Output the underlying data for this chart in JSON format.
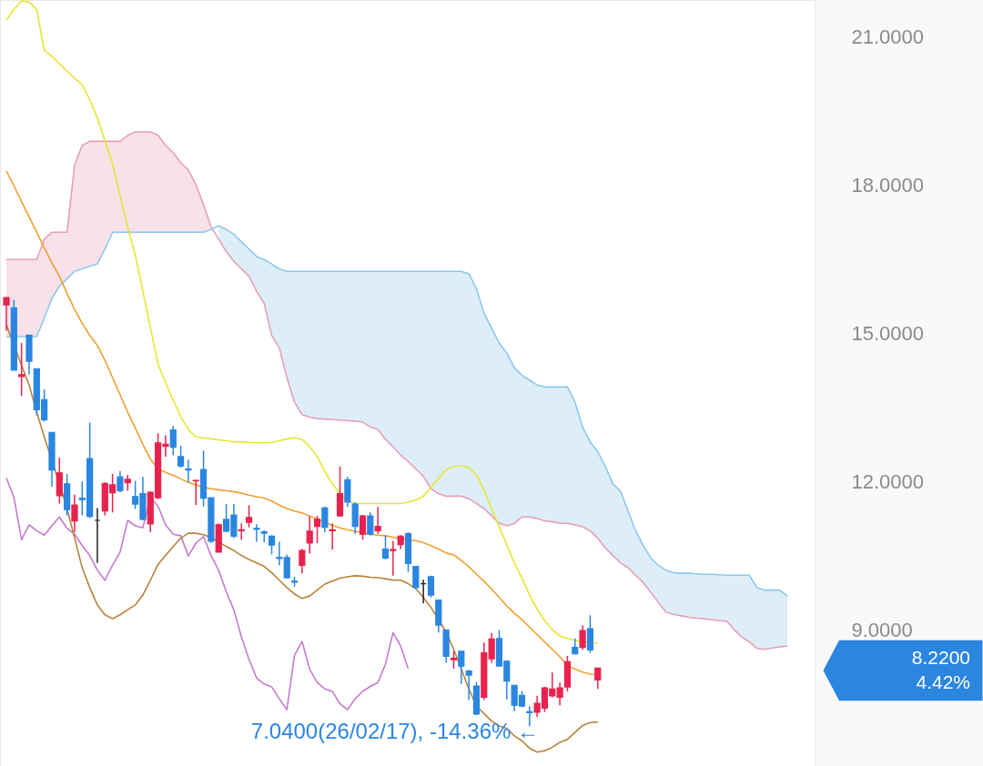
{
  "chart_data": {
    "type": "candlestick",
    "categories": [
      null,
      null,
      null,
      null,
      null,
      null,
      null,
      null,
      null,
      null,
      null,
      null,
      null,
      null,
      null,
      null,
      null,
      null,
      null,
      null,
      null,
      null,
      null,
      null,
      null,
      null,
      null,
      null,
      null,
      null,
      null,
      null,
      null,
      null,
      null,
      null,
      null,
      null,
      null,
      null,
      null,
      null,
      null,
      null,
      null,
      null,
      null,
      null,
      null,
      null,
      null,
      null,
      null,
      null,
      null,
      null,
      null,
      null,
      null,
      null,
      null,
      null,
      null,
      null,
      null,
      null,
      null,
      null,
      null,
      null,
      null,
      null,
      null,
      null,
      null,
      null,
      null,
      null,
      null,
      null,
      null,
      null,
      null,
      null,
      null,
      null,
      null,
      null,
      null,
      null,
      null,
      null,
      null,
      null,
      null,
      null,
      null,
      null,
      null,
      null,
      null,
      null,
      null,
      null
    ],
    "ohlc": [
      [
        15.57,
        15.72,
        15.05,
        15.72
      ],
      [
        15.51,
        15.67,
        14.25,
        14.25
      ],
      [
        14.12,
        14.8,
        13.73,
        14.16
      ],
      [
        14.96,
        14.96,
        14.16,
        14.43
      ],
      [
        14.28,
        14.28,
        13.33,
        13.45
      ],
      [
        13.65,
        13.86,
        13.21,
        13.24
      ],
      [
        12.99,
        12.99,
        11.89,
        12.23
      ],
      [
        11.71,
        12.48,
        11.55,
        12.17
      ],
      [
        11.95,
        12.15,
        11.31,
        11.43
      ],
      [
        11.2,
        11.73,
        10.97,
        11.52
      ],
      [
        11.66,
        12.0,
        11.31,
        11.63
      ],
      [
        12.46,
        13.19,
        11.26,
        11.29
      ],
      [
        11.21,
        11.46,
        10.35,
        11.21
      ],
      [
        11.4,
        11.98,
        11.31,
        11.96
      ],
      [
        11.77,
        12.15,
        11.37,
        11.93
      ],
      [
        12.09,
        12.21,
        11.78,
        11.81
      ],
      [
        11.97,
        12.13,
        11.81,
        12.04
      ],
      [
        11.69,
        12.01,
        11.44,
        11.54
      ],
      [
        11.75,
        12.09,
        11.21,
        11.23
      ],
      [
        11.14,
        11.8,
        10.97,
        11.78
      ],
      [
        11.67,
        12.97,
        11.64,
        12.78
      ],
      [
        12.71,
        12.93,
        12.5,
        12.75
      ],
      [
        13.04,
        13.12,
        12.53,
        12.69
      ],
      [
        12.5,
        12.72,
        12.28,
        12.31
      ],
      [
        12.25,
        12.44,
        11.98,
        12.23
      ],
      [
        12.01,
        12.02,
        11.52,
        12.02
      ],
      [
        12.24,
        12.62,
        11.49,
        11.66
      ],
      [
        11.67,
        11.67,
        10.75,
        10.79
      ],
      [
        10.57,
        11.15,
        10.57,
        11.12
      ],
      [
        11.23,
        11.54,
        10.97,
        10.99
      ],
      [
        11.32,
        11.54,
        10.85,
        10.89
      ],
      [
        11.0,
        11.15,
        10.82,
        11.02
      ],
      [
        11.17,
        11.52,
        11.07,
        11.27
      ],
      [
        11.05,
        11.13,
        10.78,
        11.03
      ],
      [
        10.98,
        11.01,
        10.77,
        10.95
      ],
      [
        10.89,
        10.91,
        10.52,
        10.71
      ],
      [
        10.46,
        10.78,
        10.3,
        10.44
      ],
      [
        10.46,
        10.52,
        10.03,
        10.05
      ],
      [
        9.98,
        10.07,
        9.87,
        9.96
      ],
      [
        10.3,
        10.63,
        10.14,
        10.6
      ],
      [
        10.75,
        11.3,
        10.54,
        10.99
      ],
      [
        11.09,
        11.3,
        10.75,
        11.23
      ],
      [
        11.46,
        11.49,
        10.97,
        11.07
      ],
      [
        11.0,
        11.15,
        10.62,
        11.02
      ],
      [
        11.3,
        12.3,
        11.3,
        11.75
      ],
      [
        12.03,
        12.09,
        11.48,
        11.58
      ],
      [
        11.54,
        11.58,
        10.94,
        11.09
      ],
      [
        10.93,
        11.32,
        10.82,
        11.3
      ],
      [
        11.3,
        11.37,
        10.9,
        10.93
      ],
      [
        11.0,
        11.48,
        10.94,
        11.09
      ],
      [
        10.63,
        10.91,
        10.42,
        10.45
      ],
      [
        10.6,
        10.79,
        10.09,
        10.62
      ],
      [
        10.72,
        10.91,
        10.63,
        10.89
      ],
      [
        10.94,
        10.97,
        10.17,
        10.34
      ],
      [
        10.28,
        10.28,
        9.83,
        9.85
      ],
      [
        9.93,
        10.01,
        9.53,
        9.93
      ],
      [
        10.07,
        10.09,
        9.65,
        9.7
      ],
      [
        9.6,
        9.6,
        8.94,
        9.09
      ],
      [
        8.99,
        9.0,
        8.33,
        8.46
      ],
      [
        8.39,
        8.56,
        8.21,
        8.42
      ],
      [
        8.56,
        8.56,
        7.9,
        8.26
      ],
      [
        8.16,
        8.18,
        7.58,
        8.08
      ],
      [
        7.86,
        7.94,
        7.27,
        7.29
      ],
      [
        7.63,
        8.74,
        7.58,
        8.53
      ],
      [
        8.41,
        8.93,
        8.33,
        8.81
      ],
      [
        8.82,
        8.99,
        8.26,
        8.26
      ],
      [
        8.36,
        8.38,
        7.59,
        7.96
      ],
      [
        7.87,
        7.87,
        7.35,
        7.47
      ],
      [
        7.67,
        7.76,
        7.43,
        7.45
      ],
      [
        7.34,
        7.45,
        7.04,
        7.32
      ],
      [
        7.33,
        7.66,
        7.23,
        7.51
      ],
      [
        7.41,
        7.84,
        7.33,
        7.82
      ],
      [
        7.66,
        8.13,
        7.63,
        7.8
      ],
      [
        7.63,
        7.93,
        7.47,
        7.82
      ],
      [
        7.84,
        8.47,
        7.75,
        8.35
      ],
      [
        8.64,
        8.82,
        8.5,
        8.51
      ],
      [
        8.64,
        9.09,
        8.59,
        8.98
      ],
      [
        9.02,
        9.29,
        8.53,
        8.59
      ],
      [
        7.98,
        8.22,
        7.8,
        8.22
      ],
      null,
      null,
      null,
      null,
      null,
      null,
      null,
      null,
      null,
      null,
      null,
      null,
      null,
      null,
      null,
      null,
      null,
      null,
      null,
      null,
      null,
      null,
      null,
      null,
      null
    ],
    "colors": [
      "#e8224e",
      "#2b86e0",
      "#e8224e",
      "#2b86e0",
      "#2b86e0",
      "#2b86e0",
      "#2b86e0",
      "#e8224e",
      "#2b86e0",
      "#e8224e",
      "#2b86e0",
      "#2b86e0",
      "#222222",
      "#e8224e",
      "#e8224e",
      "#2b86e0",
      "#e8224e",
      "#2b86e0",
      "#2b86e0",
      "#e8224e",
      "#e8224e",
      "#e8224e",
      "#2b86e0",
      "#2b86e0",
      "#2b86e0",
      "#e8224e",
      "#2b86e0",
      "#2b86e0",
      "#e8224e",
      "#2b86e0",
      "#2b86e0",
      "#e8224e",
      "#e8224e",
      "#2b86e0",
      "#2b86e0",
      "#2b86e0",
      "#2b86e0",
      "#2b86e0",
      "#2b86e0",
      "#e8224e",
      "#e8224e",
      "#e8224e",
      "#2b86e0",
      "#e8224e",
      "#e8224e",
      "#2b86e0",
      "#2b86e0",
      "#e8224e",
      "#2b86e0",
      "#e8224e",
      "#2b86e0",
      "#e8224e",
      "#e8224e",
      "#2b86e0",
      "#2b86e0",
      "#222222",
      "#2b86e0",
      "#2b86e0",
      "#2b86e0",
      "#e8224e",
      "#2b86e0",
      "#2b86e0",
      "#2b86e0",
      "#e8224e",
      "#e8224e",
      "#2b86e0",
      "#2b86e0",
      "#2b86e0",
      "#2b86e0",
      "#2b86e0",
      "#e8224e",
      "#e8224e",
      "#e8224e",
      "#e8224e",
      "#e8224e",
      "#2b86e0",
      "#e8224e",
      "#2b86e0",
      "#e8224e",
      null,
      null,
      null,
      null,
      null,
      null,
      null,
      null,
      null,
      null,
      null,
      null,
      null,
      null,
      null,
      null,
      null,
      null,
      null,
      null,
      null,
      null,
      null,
      null,
      null
    ],
    "series": [
      {
        "type": "line",
        "color": "#e6a0b8",
        "lower": [
          14.93,
          14.93,
          14.93,
          14.93,
          14.93,
          15.3,
          15.7,
          15.95,
          16.1,
          16.25,
          16.3,
          16.35,
          16.4,
          16.7,
          17.04,
          17.04,
          17.04,
          17.04,
          17.04,
          17.04,
          17.04,
          17.04,
          17.04,
          17.04,
          17.04,
          17.04,
          17.04,
          17.1,
          null,
          null,
          null,
          null,
          null,
          null,
          null,
          null,
          null,
          null,
          null,
          null,
          null,
          null,
          null,
          null,
          null,
          null,
          null,
          null,
          null,
          null,
          null,
          null,
          null,
          null,
          null,
          null,
          null,
          null,
          null,
          null,
          null,
          null,
          null,
          null,
          null,
          null,
          null,
          null,
          null,
          null,
          null,
          null,
          null,
          null,
          null,
          null,
          null,
          null,
          null,
          null,
          null,
          null,
          null,
          null,
          null,
          null,
          null,
          null,
          null,
          null,
          null,
          null,
          null,
          null,
          null,
          null,
          null,
          null,
          null,
          null,
          null,
          null,
          null,
          null
        ],
        "upper": [
          16.49,
          16.49,
          16.49,
          16.49,
          16.49,
          16.9,
          17.04,
          17.04,
          17.04,
          18.4,
          18.8,
          18.88,
          18.88,
          18.88,
          18.88,
          18.88,
          19.0,
          19.07,
          19.07,
          19.07,
          19.0,
          18.8,
          18.65,
          18.45,
          18.3,
          18.0,
          17.6,
          17.15,
          null,
          null,
          null,
          null,
          null,
          null,
          null,
          null,
          null,
          null,
          null,
          null,
          null,
          null,
          null,
          null,
          null,
          null,
          null,
          null,
          null,
          null,
          null,
          null,
          null,
          null,
          null,
          null,
          null,
          null,
          null,
          null,
          null,
          null,
          null,
          null,
          null,
          null,
          null,
          null,
          null,
          null,
          null,
          null,
          null,
          null,
          null,
          null,
          null,
          null,
          null,
          null,
          null,
          null,
          null,
          null,
          null,
          null,
          null,
          null,
          null,
          null,
          null,
          null,
          null,
          null,
          null,
          null,
          null,
          null,
          null,
          null,
          null,
          null,
          null,
          null
        ],
        "values": [
          16.49,
          16.49,
          16.49,
          16.49,
          16.49,
          16.9,
          17.04,
          17.04,
          17.04,
          18.4,
          18.8,
          18.88,
          18.88,
          18.88,
          18.88,
          18.88,
          19.0,
          19.07,
          19.07,
          19.07,
          19.0,
          18.8,
          18.65,
          18.45,
          18.3,
          18.0,
          17.6,
          17.15,
          16.9,
          16.65,
          16.45,
          16.3,
          16.15,
          15.85,
          15.6,
          14.95,
          14.7,
          14.1,
          13.6,
          13.35,
          13.3,
          13.27,
          13.26,
          13.25,
          13.24,
          13.23,
          13.22,
          13.2,
          13.1,
          13.05,
          12.85,
          12.7,
          12.53,
          12.4,
          12.25,
          12.1,
          11.85,
          11.75,
          11.7,
          11.7,
          11.7,
          11.65,
          11.55,
          11.45,
          11.3,
          11.15,
          11.1,
          11.15,
          11.28,
          11.28,
          11.25,
          11.2,
          11.18,
          11.15,
          11.15,
          11.12,
          11.08,
          11.0,
          10.85,
          10.65,
          10.5,
          10.35,
          10.25,
          10.1,
          9.95,
          9.75,
          9.55,
          9.35,
          9.31,
          9.28,
          9.25,
          9.23,
          9.22,
          9.2,
          9.18,
          9.17,
          9.0,
          8.85,
          8.75,
          8.62,
          8.6,
          8.63,
          8.65,
          8.67
        ]
      },
      {
        "type": "line",
        "color": "#8ec8ec",
        "upper": [
          null,
          null,
          null,
          null,
          null,
          null,
          null,
          null,
          null,
          null,
          null,
          null,
          null,
          null,
          null,
          null,
          null,
          null,
          null,
          null,
          null,
          null,
          null,
          null,
          null,
          null,
          null,
          null,
          17.17,
          17.1,
          17.0,
          16.85,
          16.7,
          16.55,
          16.49,
          16.4,
          16.3,
          16.25,
          16.25,
          16.25,
          16.25,
          16.25,
          16.25,
          16.25,
          16.25,
          16.25,
          16.25,
          16.25,
          16.25,
          16.25,
          16.25,
          16.25,
          16.25,
          16.25,
          16.25,
          16.25,
          16.25,
          16.25,
          16.25,
          16.25,
          16.25,
          16.2,
          15.9,
          15.4,
          15.1,
          14.8,
          14.6,
          14.3,
          14.15,
          14.05,
          13.95,
          13.91,
          13.91,
          13.91,
          13.91,
          13.6,
          13.1,
          12.8,
          12.6,
          12.3,
          11.95,
          11.8,
          11.4,
          11.0,
          10.7,
          10.45,
          10.3,
          10.2,
          10.15,
          10.14,
          10.14,
          10.13,
          10.12,
          10.12,
          10.11,
          10.1,
          10.1,
          10.1,
          10.1,
          9.85,
          9.8,
          9.8,
          9.8,
          9.68
        ],
        "lower": [
          null,
          null,
          null,
          null,
          null,
          null,
          null,
          null,
          null,
          null,
          null,
          null,
          null,
          null,
          null,
          null,
          null,
          null,
          null,
          null,
          null,
          null,
          null,
          null,
          null,
          null,
          null,
          null,
          16.9,
          16.65,
          16.45,
          16.3,
          16.15,
          15.85,
          15.6,
          14.95,
          14.7,
          14.1,
          13.6,
          13.35,
          13.3,
          13.27,
          13.26,
          13.25,
          13.24,
          13.23,
          13.22,
          13.2,
          13.1,
          13.05,
          12.85,
          12.7,
          12.53,
          12.4,
          12.25,
          12.1,
          11.85,
          11.75,
          11.7,
          11.7,
          11.7,
          11.65,
          11.55,
          11.45,
          11.3,
          11.15,
          11.1,
          11.15,
          11.28,
          11.28,
          11.25,
          11.2,
          11.18,
          11.15,
          11.15,
          11.12,
          11.08,
          11.0,
          10.85,
          10.65,
          10.5,
          10.35,
          10.25,
          10.1,
          9.95,
          9.75,
          9.55,
          9.35,
          9.31,
          9.28,
          9.25,
          9.23,
          9.22,
          9.2,
          9.18,
          9.17,
          9.0,
          8.85,
          8.75,
          8.62,
          8.6,
          8.63,
          8.65,
          8.67
        ],
        "values": [
          14.93,
          14.93,
          14.93,
          14.93,
          14.93,
          15.3,
          15.7,
          15.95,
          16.1,
          16.25,
          16.3,
          16.35,
          16.4,
          16.7,
          17.04,
          17.04,
          17.04,
          17.04,
          17.04,
          17.04,
          17.04,
          17.04,
          17.04,
          17.04,
          17.04,
          17.04,
          17.04,
          17.1,
          17.17,
          17.1,
          17.0,
          16.85,
          16.7,
          16.55,
          16.49,
          16.4,
          16.3,
          16.25,
          16.25,
          16.25,
          16.25,
          16.25,
          16.25,
          16.25,
          16.25,
          16.25,
          16.25,
          16.25,
          16.25,
          16.25,
          16.25,
          16.25,
          16.25,
          16.25,
          16.25,
          16.25,
          16.25,
          16.25,
          16.25,
          16.25,
          16.25,
          16.2,
          15.9,
          15.4,
          15.1,
          14.8,
          14.6,
          14.3,
          14.15,
          14.05,
          13.95,
          13.91,
          13.91,
          13.91,
          13.91,
          13.6,
          13.1,
          12.8,
          12.6,
          12.3,
          11.95,
          11.8,
          11.4,
          11.0,
          10.7,
          10.45,
          10.3,
          10.2,
          10.15,
          10.14,
          10.14,
          10.13,
          10.12,
          10.12,
          10.11,
          10.1,
          10.1,
          10.1,
          10.1,
          9.85,
          9.8,
          9.8,
          9.8,
          9.68
        ]
      },
      {
        "type": "line",
        "color": "#c77ad0",
        "values": [
          12.07,
          11.67,
          10.82,
          11.12,
          11.0,
          10.91,
          11.1,
          11.28,
          11.05,
          10.93,
          10.7,
          10.5,
          10.2,
          10.0,
          10.3,
          10.57,
          11.21,
          11.1,
          11.06,
          11.67,
          11.5,
          11.12,
          10.93,
          10.9,
          10.49,
          10.75,
          10.88,
          10.5,
          10.2,
          9.77,
          9.4,
          8.85,
          8.4,
          8.02,
          7.9,
          7.84,
          7.6,
          7.38,
          8.48,
          8.76,
          8.2,
          7.93,
          7.8,
          7.75,
          7.5,
          7.38,
          7.6,
          7.75,
          7.85,
          7.93,
          8.3,
          8.94,
          8.67,
          8.21,
          null,
          null,
          null,
          null,
          null,
          null,
          null,
          null,
          null,
          null,
          null,
          null,
          null,
          null,
          null,
          null,
          null,
          null,
          null,
          null,
          null,
          null,
          null,
          null,
          null,
          null,
          null,
          null,
          null,
          null,
          null,
          null,
          null,
          null,
          null,
          null,
          null,
          null,
          null,
          null,
          null,
          null,
          null,
          null,
          null,
          null,
          null,
          null,
          null,
          null
        ]
      },
      {
        "type": "line",
        "color": "#e6e632",
        "values": [
          21.33,
          21.55,
          21.72,
          21.7,
          21.55,
          20.72,
          20.6,
          20.45,
          20.3,
          20.16,
          20.03,
          19.72,
          19.35,
          18.89,
          18.43,
          17.78,
          17.14,
          16.58,
          15.85,
          15.11,
          14.37,
          14.0,
          13.64,
          13.31,
          13.05,
          12.9,
          12.88,
          12.86,
          12.84,
          12.82,
          12.8,
          12.8,
          12.79,
          12.78,
          12.78,
          12.79,
          12.82,
          12.86,
          12.88,
          12.85,
          12.7,
          12.5,
          12.2,
          11.95,
          11.75,
          11.6,
          11.55,
          11.55,
          11.55,
          11.55,
          11.55,
          11.55,
          11.55,
          11.58,
          11.62,
          11.7,
          11.88,
          12.06,
          12.23,
          12.3,
          12.32,
          12.28,
          12.13,
          11.82,
          11.45,
          11.08,
          10.72,
          10.35,
          10.04,
          9.7,
          9.42,
          9.18,
          9.0,
          8.87,
          8.82,
          8.78,
          8.76,
          8.74,
          8.73,
          null,
          null,
          null,
          null,
          null,
          null,
          null,
          null,
          null,
          null,
          null,
          null,
          null,
          null,
          null,
          null,
          null,
          null,
          null,
          null,
          null,
          null,
          null,
          null,
          null
        ]
      },
      {
        "type": "line",
        "color": "#f0a030",
        "values": [
          18.28,
          17.98,
          17.66,
          17.35,
          17.04,
          16.72,
          16.42,
          16.15,
          15.8,
          15.48,
          15.2,
          14.95,
          14.75,
          14.45,
          14.1,
          13.75,
          13.4,
          13.08,
          12.75,
          12.45,
          12.25,
          12.18,
          12.12,
          12.05,
          11.98,
          11.93,
          11.88,
          11.85,
          11.83,
          11.81,
          11.79,
          11.76,
          11.72,
          11.69,
          11.66,
          11.6,
          11.52,
          11.45,
          11.4,
          11.36,
          11.3,
          11.24,
          11.17,
          11.11,
          11.06,
          11.02,
          10.99,
          10.96,
          10.93,
          10.91,
          10.9,
          10.87,
          10.84,
          10.82,
          10.8,
          10.76,
          10.7,
          10.63,
          10.55,
          10.51,
          10.4,
          10.27,
          10.12,
          9.98,
          9.82,
          9.65,
          9.48,
          9.33,
          9.2,
          9.05,
          8.9,
          8.75,
          8.6,
          8.45,
          8.27,
          8.2,
          8.14,
          8.1,
          8.08,
          null,
          null,
          null,
          null,
          null,
          null,
          null,
          null,
          null,
          null,
          null,
          null,
          null,
          null,
          null,
          null,
          null,
          null,
          null,
          null,
          null,
          null,
          null,
          null,
          null
        ]
      },
      {
        "type": "line",
        "color": "#b8823a",
        "values": [
          15.17,
          null,
          14.35,
          13.95,
          13.4,
          12.9,
          null,
          11.95,
          11.45,
          10.85,
          10.25,
          9.85,
          9.5,
          9.3,
          9.22,
          9.3,
          9.4,
          9.5,
          9.7,
          10.0,
          10.32,
          10.5,
          10.68,
          10.85,
          10.95,
          10.95,
          10.92,
          10.86,
          10.78,
          10.68,
          10.6,
          10.5,
          10.42,
          10.35,
          10.28,
          10.15,
          10.0,
          9.85,
          9.72,
          9.63,
          9.68,
          9.8,
          9.92,
          9.98,
          10.04,
          10.07,
          10.09,
          10.08,
          10.06,
          10.05,
          10.03,
          10.0,
          10.0,
          9.93,
          9.83,
          9.65,
          9.45,
          null,
          8.95,
          8.6,
          8.2,
          7.8,
          7.45,
          7.3,
          7.15,
          7.05,
          7.0,
          6.85,
          6.75,
          6.6,
          6.52,
          6.55,
          6.62,
          6.72,
          6.78,
          6.92,
          7.06,
          7.12,
          7.13,
          null,
          null,
          null,
          null,
          null,
          null,
          null,
          null,
          null,
          null,
          null,
          null,
          null,
          null,
          null,
          null,
          null,
          null,
          null,
          null,
          null,
          null,
          null,
          null,
          null
        ]
      }
    ],
    "ylim": [
      6.24,
      21.74
    ],
    "yticks": [
      {
        "value": 9,
        "label": "9.0000"
      },
      {
        "value": 12,
        "label": "12.0000"
      },
      {
        "value": 15,
        "label": "15.0000"
      },
      {
        "value": 18,
        "label": "18.0000"
      },
      {
        "value": 21,
        "label": "21.0000"
      }
    ],
    "annotations": [
      "8.2200\n4.42%",
      "7.0400(26/02/17), -14.36% ←"
    ]
  }
}
